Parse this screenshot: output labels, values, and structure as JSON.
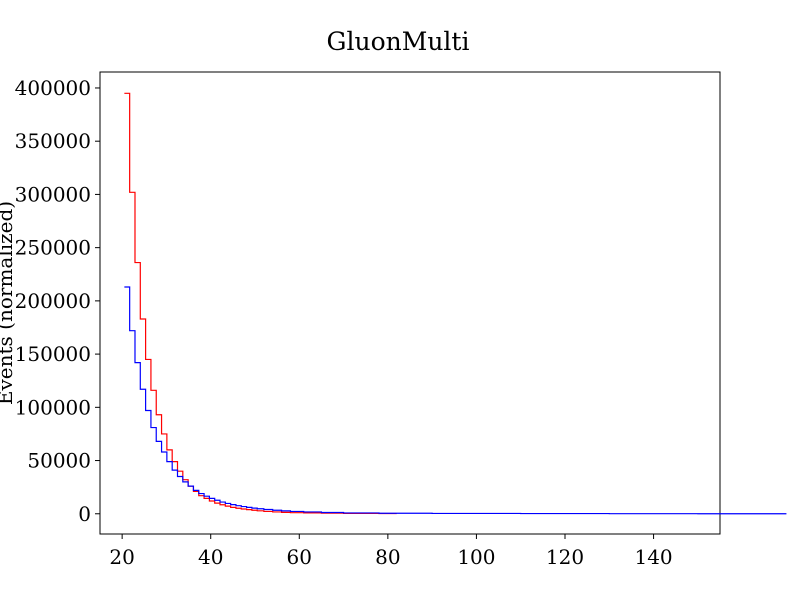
{
  "chart_data": {
    "type": "line",
    "title": "GluonMulti",
    "xlabel": "",
    "ylabel": "Events (normalized)",
    "xlim": [
      15,
      155
    ],
    "ylim": [
      -19000,
      415000
    ],
    "xticks": [
      20,
      40,
      60,
      80,
      100,
      120,
      140
    ],
    "yticks": [
      0,
      50000,
      100000,
      150000,
      200000,
      250000,
      300000,
      350000,
      400000
    ],
    "grid": false,
    "step": "post",
    "series": [
      {
        "color": "#ff0000",
        "x": [
          20.5,
          21.7,
          22.9,
          24.1,
          25.3,
          26.5,
          27.7,
          28.9,
          30.1,
          31.3,
          32.5,
          33.7,
          34.9,
          36.1,
          37.3,
          38.5,
          39.7,
          40.9,
          42.1,
          43.3,
          44.5,
          45.7,
          46.9,
          48.1,
          49.3,
          50.5,
          52.0,
          54.0,
          56.0,
          58.0,
          61.0,
          65.0,
          70.0,
          74.0,
          78.0
        ],
        "y": [
          395000,
          302000,
          236000,
          183000,
          145000,
          116000,
          93000,
          75000,
          60000,
          49000,
          40000,
          32000,
          26000,
          21000,
          17000,
          14500,
          12000,
          10000,
          8500,
          7200,
          6000,
          5200,
          4500,
          3900,
          3300,
          2800,
          2200,
          1700,
          1300,
          1000,
          800,
          600,
          400,
          300,
          200
        ]
      },
      {
        "color": "#0000ff",
        "x": [
          20.5,
          21.7,
          22.9,
          24.1,
          25.3,
          26.5,
          27.7,
          28.9,
          30.1,
          31.3,
          32.5,
          33.7,
          34.9,
          36.1,
          37.3,
          38.5,
          39.7,
          40.9,
          42.1,
          43.3,
          44.5,
          45.7,
          46.9,
          48.1,
          49.3,
          50.5,
          52.0,
          54.0,
          56.0,
          58.0,
          61.0,
          65.0,
          70.0,
          78.0,
          90.0,
          110.0,
          130.0,
          150.0
        ],
        "y": [
          213000,
          172000,
          142000,
          117000,
          97000,
          81000,
          68000,
          58000,
          49000,
          41000,
          35000,
          30000,
          26000,
          22000,
          19000,
          16500,
          14500,
          12700,
          11000,
          9700,
          8600,
          7600,
          6800,
          6000,
          5300,
          4700,
          4000,
          3300,
          2700,
          2200,
          1700,
          1200,
          800,
          500,
          300,
          200,
          100,
          50
        ]
      }
    ]
  }
}
